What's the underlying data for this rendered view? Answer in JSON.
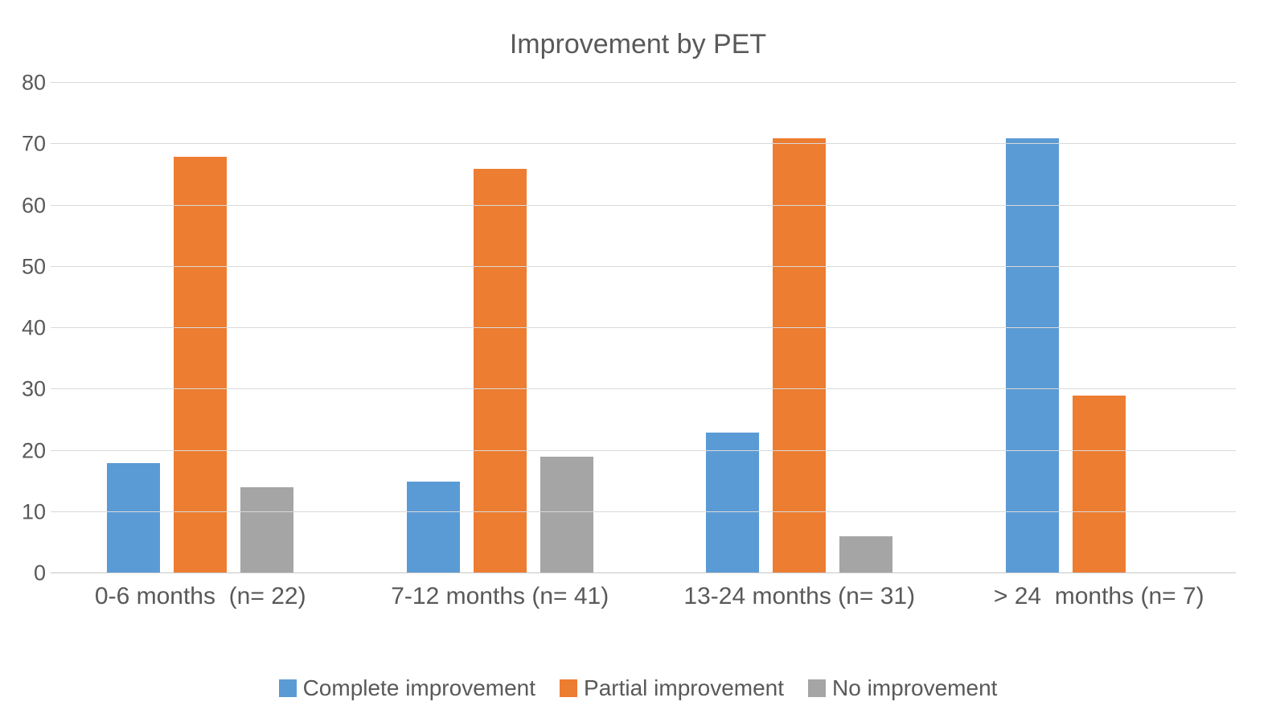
{
  "chart_data": {
    "type": "bar",
    "title": "Improvement by PET",
    "categories": [
      "0-6 months  (n= 22)",
      "7-12 months (n= 41)",
      "13-24 months (n= 31)",
      "> 24  months (n= 7)"
    ],
    "series": [
      {
        "name": "Complete improvement",
        "color": "#5B9BD5",
        "values": [
          18,
          15,
          23,
          71
        ]
      },
      {
        "name": "Partial improvement",
        "color": "#ED7D31",
        "values": [
          68,
          66,
          71,
          29
        ]
      },
      {
        "name": "No improvement",
        "color": "#A5A5A5",
        "values": [
          14,
          19,
          6,
          0
        ]
      }
    ],
    "xlabel": "",
    "ylabel": "",
    "ylim": [
      0,
      80
    ],
    "yticks": [
      0,
      10,
      20,
      30,
      40,
      50,
      60,
      70,
      80
    ],
    "grid": true,
    "legend_position": "bottom"
  },
  "style": {
    "text_color": "#595959",
    "grid_color": "#D9D9D9",
    "axis_color": "#C6C6C6",
    "background": "#ffffff"
  }
}
